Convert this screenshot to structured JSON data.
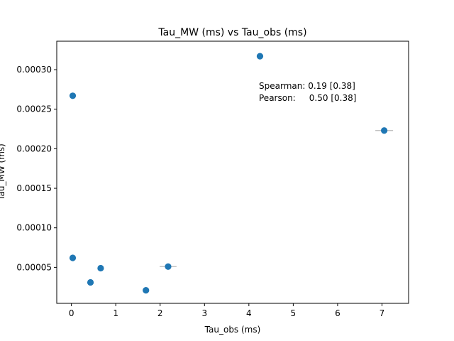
{
  "chart_data": {
    "type": "scatter",
    "title": "Tau_MW (ms) vs Tau_obs (ms)",
    "xlabel": "Tau_obs (ms)",
    "ylabel": "Tau_MW (ms)",
    "xlim": [
      -0.33,
      7.6
    ],
    "ylim": [
      4.5e-06,
      0.000336
    ],
    "x_ticks": [
      0,
      1,
      2,
      3,
      4,
      5,
      6,
      7
    ],
    "x_tick_labels": [
      "0",
      "1",
      "2",
      "3",
      "4",
      "5",
      "6",
      "7"
    ],
    "y_ticks": [
      5e-05,
      0.0001,
      0.00015,
      0.0002,
      0.00025,
      0.0003
    ],
    "y_tick_labels": [
      "0.00005",
      "0.00010",
      "0.00015",
      "0.00020",
      "0.00025",
      "0.00030"
    ],
    "points": [
      {
        "x": 0.03,
        "y": 0.000267,
        "xerr": 0
      },
      {
        "x": 0.03,
        "y": 6.2e-05,
        "xerr": 0
      },
      {
        "x": 0.43,
        "y": 3.1e-05,
        "xerr": 0
      },
      {
        "x": 0.66,
        "y": 4.9e-05,
        "xerr": 0
      },
      {
        "x": 1.68,
        "y": 2.1e-05,
        "xerr": 0
      },
      {
        "x": 2.18,
        "y": 5.1e-05,
        "xerr": 0.19
      },
      {
        "x": 4.25,
        "y": 0.000317,
        "xerr": 0
      },
      {
        "x": 7.05,
        "y": 0.000223,
        "xerr": 0.2
      }
    ],
    "marker_color": "#1f77b4",
    "errorbar_color": "#b8b8b8",
    "annotations": [
      "Spearman: 0.19 [0.38]",
      "Pearson:     0.50 [0.38]"
    ],
    "grid": false
  }
}
